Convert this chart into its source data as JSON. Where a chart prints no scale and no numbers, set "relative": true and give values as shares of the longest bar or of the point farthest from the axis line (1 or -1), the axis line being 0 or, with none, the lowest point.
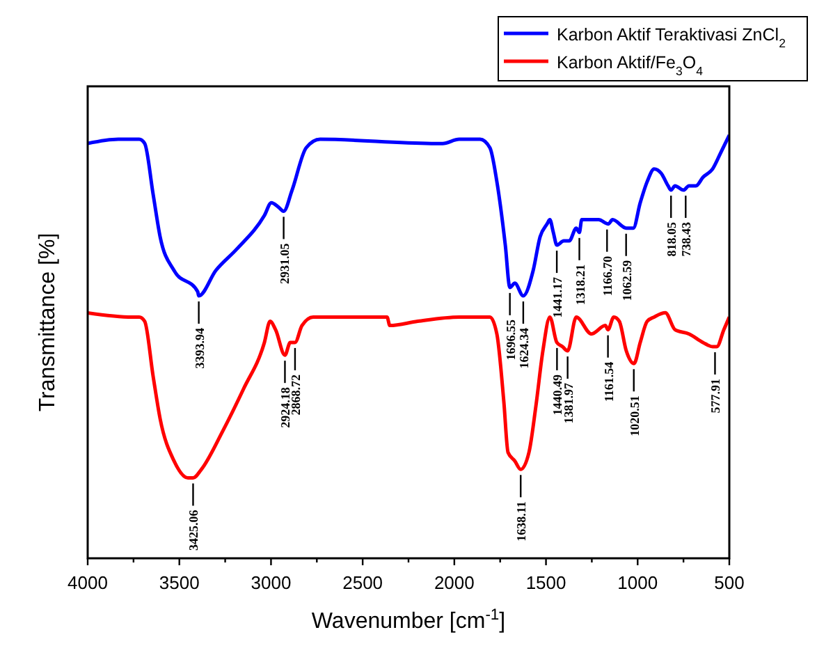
{
  "chart_data": {
    "type": "line",
    "relative": true,
    "xlabel": "Wavenumber [cm$^{-1}$]",
    "ylabel": "Transmittance [%]",
    "xlim": [
      4000,
      500
    ],
    "xticks": [
      4000,
      {
        "value": 3750,
        "label": null
      },
      3500,
      {
        "value": 3250,
        "label": null
      },
      3000,
      {
        "value": 2750,
        "label": null
      },
      2500,
      {
        "value": 2250,
        "label": null
      },
      2000,
      {
        "value": 1750,
        "label": null
      },
      1500,
      {
        "value": 1250,
        "label": null
      },
      1000,
      {
        "value": 750,
        "label": null
      },
      500
    ],
    "legend": "top right",
    "grid": false,
    "tick_labels": "x",
    "line_style": "solid",
    "marker": "none",
    "series": [
      {
        "name": "Karbon Aktif Teraktivasi ZnCl$_{2}$",
        "color": "#0000ff",
        "x": [
          4000,
          3833,
          3719,
          3689,
          3643,
          3605,
          3529,
          3400,
          3394,
          3301,
          3188,
          3036,
          2998,
          2960,
          2931,
          2885,
          2808,
          2732,
          2125,
          2064,
          1973,
          1860,
          1806,
          1768,
          1722,
          1697,
          1670,
          1624,
          1570,
          1532,
          1494,
          1479,
          1460,
          1441,
          1403,
          1373,
          1335,
          1318,
          1305,
          1213,
          1160,
          1137,
          1062,
          1024,
          986,
          948,
          910,
          872,
          834,
          818,
          796,
          750,
          720,
          682,
          644,
          591,
          545,
          500
        ],
        "values": [
          0.98,
          0.99,
          0.99,
          0.98,
          0.86,
          0.76,
          0.68,
          0.63,
          0.62,
          0.68,
          0.73,
          0.81,
          0.84,
          0.83,
          0.82,
          0.87,
          0.97,
          0.99,
          0.98,
          0.98,
          0.99,
          0.99,
          0.97,
          0.89,
          0.74,
          0.64,
          0.65,
          0.62,
          0.68,
          0.76,
          0.79,
          0.8,
          0.77,
          0.74,
          0.75,
          0.75,
          0.78,
          0.77,
          0.8,
          0.8,
          0.79,
          0.8,
          0.78,
          0.78,
          0.84,
          0.89,
          0.92,
          0.91,
          0.88,
          0.87,
          0.88,
          0.87,
          0.88,
          0.88,
          0.9,
          0.92,
          0.96,
          1
        ]
      },
      {
        "name": "Karbon Aktif/Fe$_{3}$O$_{4}$",
        "color": "#ff0000",
        "x": [
          4000,
          3757,
          3719,
          3689,
          3643,
          3605,
          3529,
          3453,
          3425,
          3380,
          3264,
          3150,
          3036,
          3005,
          2975,
          2924,
          2895,
          2869,
          2831,
          2770,
          2367,
          2352,
          2200,
          1973,
          1806,
          1768,
          1730,
          1707,
          1670,
          1638,
          1593,
          1555,
          1517,
          1479,
          1441,
          1410,
          1382,
          1335,
          1252,
          1176,
          1162,
          1130,
          1100,
          1062,
          1020,
          986,
          948,
          910,
          849,
          796,
          720,
          644,
          591,
          568,
          530,
          500
        ],
        "values": [
          0.58,
          0.57,
          0.57,
          0.56,
          0.43,
          0.33,
          0.23,
          0.19,
          0.19,
          0.21,
          0.3,
          0.4,
          0.51,
          0.56,
          0.54,
          0.48,
          0.51,
          0.51,
          0.55,
          0.57,
          0.57,
          0.55,
          0.56,
          0.57,
          0.57,
          0.53,
          0.37,
          0.25,
          0.23,
          0.21,
          0.25,
          0.36,
          0.49,
          0.57,
          0.51,
          0.5,
          0.49,
          0.57,
          0.53,
          0.55,
          0.54,
          0.57,
          0.56,
          0.49,
          0.46,
          0.51,
          0.56,
          0.57,
          0.58,
          0.54,
          0.53,
          0.51,
          0.5,
          0.5,
          0.54,
          0.57
        ]
      }
    ],
    "annotations": [
      {
        "text": "3393.94",
        "x": 3394,
        "y": 0.62
      },
      {
        "text": "2931.05",
        "x": 2931,
        "y": 0.82
      },
      {
        "text": "1696.55",
        "x": 1697,
        "y": 0.64
      },
      {
        "text": "1624.34",
        "x": 1624,
        "y": 0.62
      },
      {
        "text": "1441.17",
        "x": 1441,
        "y": 0.74
      },
      {
        "text": "1318.21",
        "x": 1318,
        "y": 0.77
      },
      {
        "text": "1166.70",
        "x": 1167,
        "y": 0.79
      },
      {
        "text": "1062.59",
        "x": 1063,
        "y": 0.78
      },
      {
        "text": "818.05",
        "x": 818,
        "y": 0.87
      },
      {
        "text": "738.43",
        "x": 738,
        "y": 0.87
      },
      {
        "text": "3425.06",
        "x": 3425,
        "y": 0.19
      },
      {
        "text": "2924.18",
        "x": 2924,
        "y": 0.48
      },
      {
        "text": "2868.72",
        "x": 2869,
        "y": 0.51
      },
      {
        "text": "1638.11",
        "x": 1638,
        "y": 0.21
      },
      {
        "text": "1440.49",
        "x": 1440,
        "y": 0.51
      },
      {
        "text": "1381.97",
        "x": 1382,
        "y": 0.49
      },
      {
        "text": "1161.54",
        "x": 1162,
        "y": 0.54
      },
      {
        "text": "1020.51",
        "x": 1021,
        "y": 0.46
      },
      {
        "text": "577.91",
        "x": 578,
        "y": 0.5
      }
    ]
  }
}
